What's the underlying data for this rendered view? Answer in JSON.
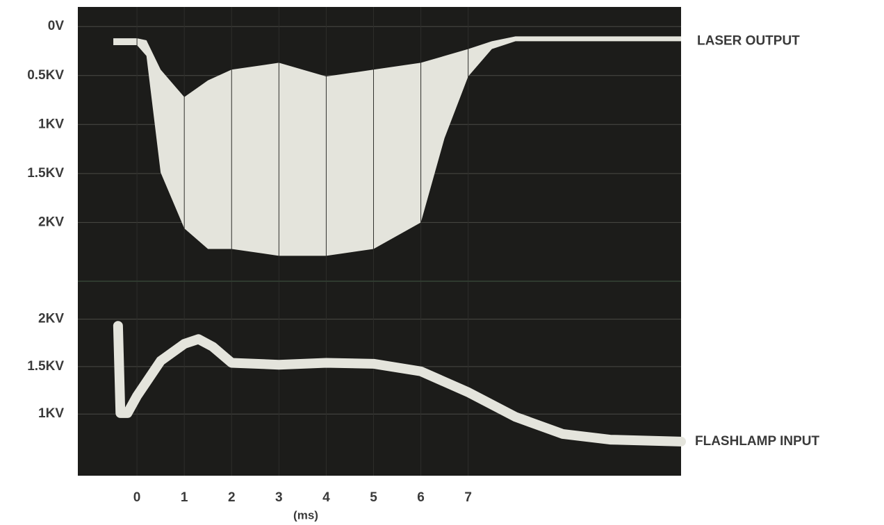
{
  "chart_data": [
    {
      "type": "band",
      "xlim": [
        -1.25,
        11.5
      ],
      "ylim": [
        2.6,
        -0.2
      ],
      "yticks": [
        {
          "value": 0,
          "label": "0V"
        },
        {
          "value": 0.5,
          "label": "0.5KV"
        },
        {
          "value": 1,
          "label": "1KV"
        },
        {
          "value": 1.5,
          "label": "1.5KV"
        },
        {
          "value": 2,
          "label": "2KV"
        }
      ],
      "grid": true,
      "x": [
        -0.5,
        0,
        0.2,
        0.5,
        1,
        1.5,
        2,
        3,
        4,
        5,
        6,
        6.5,
        7,
        7.5,
        8,
        11.5
      ],
      "series": [
        {
          "name": "LASER OUTPUT",
          "color": "#e4e4dc",
          "upper": [
            0.12,
            0.12,
            0.14,
            0.44,
            0.72,
            0.55,
            0.44,
            0.37,
            0.51,
            0.44,
            0.37,
            0.3,
            0.23,
            0.15,
            0.1,
            0.1
          ],
          "values": [
            0.19,
            0.19,
            0.3,
            1.49,
            2.06,
            2.27,
            2.27,
            2.34,
            2.34,
            2.27,
            2.0,
            1.14,
            0.51,
            0.23,
            0.15,
            0.15
          ]
        }
      ]
    },
    {
      "type": "line",
      "xlim": [
        -1.25,
        11.5
      ],
      "ylim": [
        0.35,
        2.4
      ],
      "xticks": [
        0,
        1,
        2,
        3,
        4,
        5,
        6,
        7
      ],
      "x_label": "(ms)",
      "yticks": [
        {
          "value": 1,
          "label": "1KV"
        },
        {
          "value": 1.5,
          "label": "1.5KV"
        },
        {
          "value": 2,
          "label": "2KV"
        }
      ],
      "grid": true,
      "x": [
        -0.4,
        -0.35,
        -0.2,
        0,
        0.5,
        1,
        1.3,
        1.6,
        2,
        3,
        4,
        5,
        6,
        7,
        8,
        9,
        10,
        11.5
      ],
      "series": [
        {
          "name": "FLASHLAMP INPUT",
          "color": "#e4e4dc",
          "values": [
            1.93,
            1.01,
            1.01,
            1.19,
            1.56,
            1.74,
            1.79,
            1.71,
            1.54,
            1.52,
            1.54,
            1.53,
            1.45,
            1.23,
            0.97,
            0.79,
            0.73,
            0.71
          ]
        }
      ]
    }
  ]
}
